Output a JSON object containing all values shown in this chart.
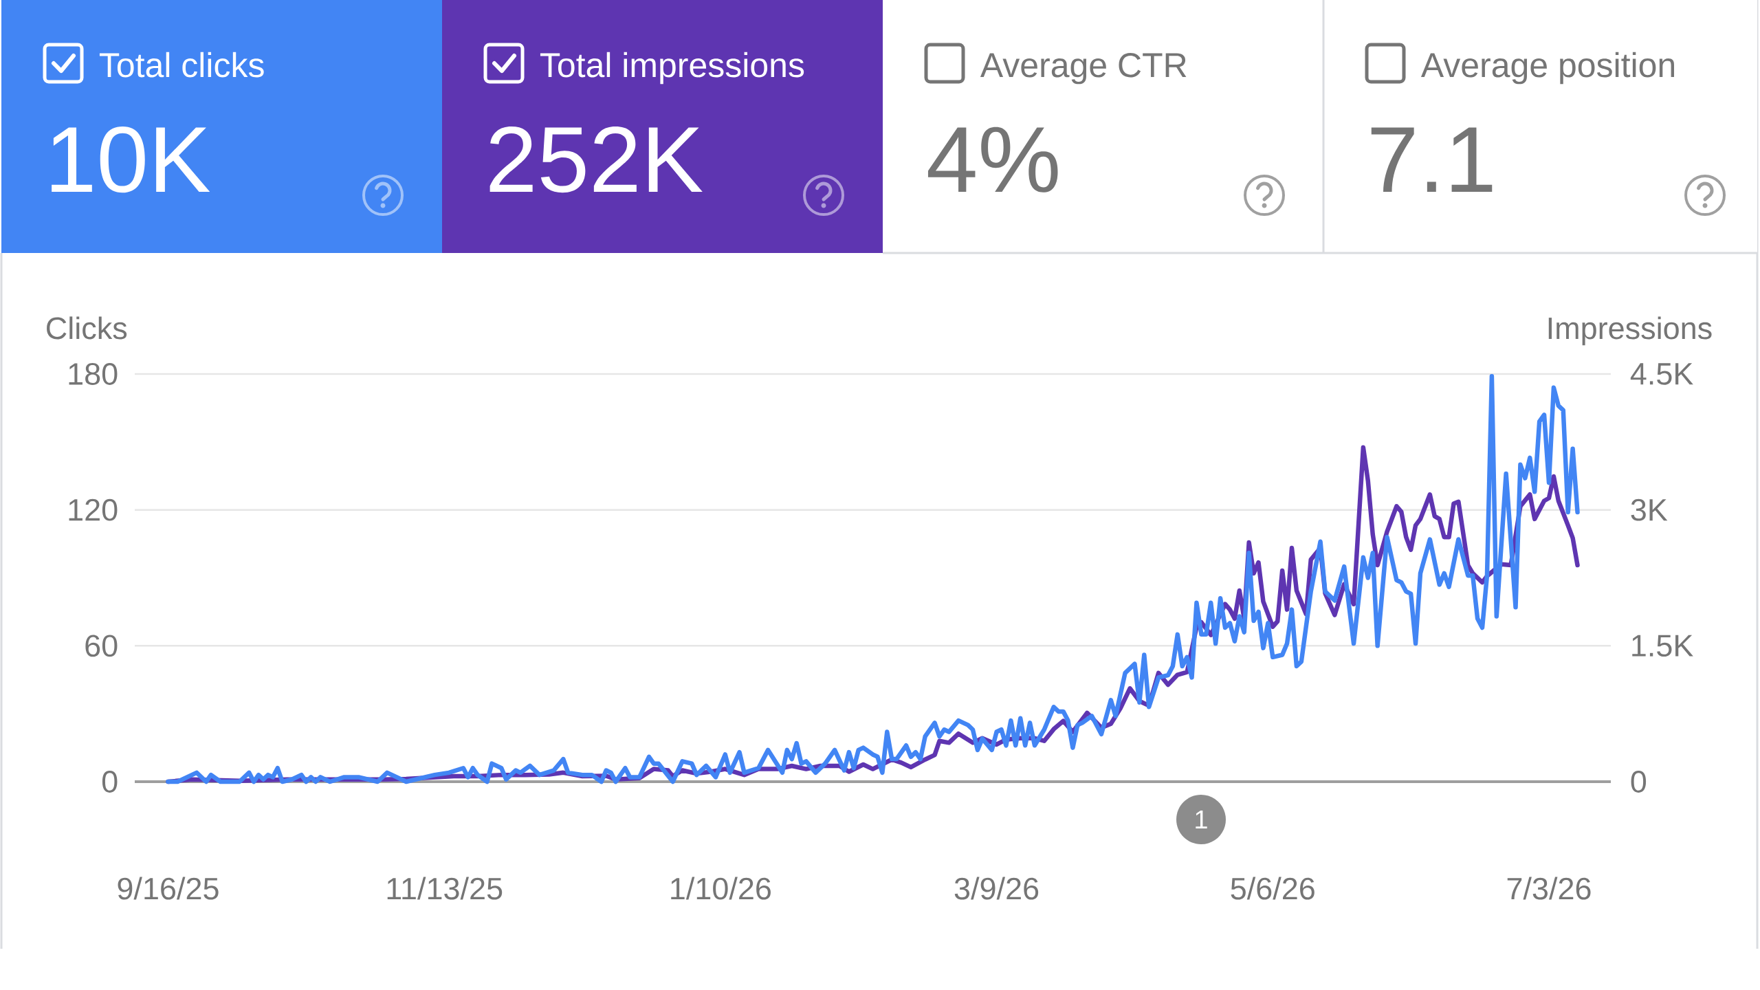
{
  "chart_data": [
    {
      "type": "other",
      "categories": [
        "Total clicks",
        "Total impressions",
        "Average CTR",
        "Average position"
      ],
      "value_labels": [
        "10K",
        "252K",
        "4%",
        "7.1"
      ],
      "colors": [
        "#4285f4",
        "#5e35b1",
        "#ffffff",
        "#ffffff"
      ]
    },
    {
      "type": "line",
      "ylabel": "Clicks",
      "y2label": "Impressions",
      "xlim": [
        "2025-09-09",
        "2026-07-16"
      ],
      "xticks": [
        {
          "value": "2025-09-16",
          "label": "9/16/25"
        },
        {
          "value": "2025-11-13",
          "label": "11/13/25"
        },
        {
          "value": "2026-01-10",
          "label": "1/10/26"
        },
        {
          "value": "2026-03-09",
          "label": "3/9/26"
        },
        {
          "value": "2026-05-06",
          "label": "5/6/26"
        },
        {
          "value": "2026-07-03",
          "label": "7/3/26"
        }
      ],
      "ylim": [
        0,
        180
      ],
      "yticks": [
        0,
        60,
        120,
        180
      ],
      "y2lim": [
        0,
        4500
      ],
      "y2ticks": [
        0,
        {
          "value": 1500,
          "label": "1.5K"
        },
        {
          "value": 3000,
          "label": "3K"
        },
        {
          "value": 4500,
          "label": "4.5K"
        }
      ],
      "grid": "y",
      "annotations": [
        "1"
      ],
      "series": [
        {
          "color": "#4285f4",
          "x": [
            "2025-09-16",
            "2025-09-18",
            "2025-09-22",
            "2025-09-24",
            "2025-09-25",
            "2025-09-27",
            "2025-10-01",
            "2025-10-03",
            "2025-10-04",
            "2025-10-05",
            "2025-10-06",
            "2025-10-07",
            "2025-10-08",
            "2025-10-09",
            "2025-10-10",
            "2025-10-12",
            "2025-10-14",
            "2025-10-15",
            "2025-10-16",
            "2025-10-17",
            "2025-10-18",
            "2025-10-20",
            "2025-10-23",
            "2025-10-26",
            "2025-10-28",
            "2025-10-30",
            "2025-11-01",
            "2025-11-03",
            "2025-11-05",
            "2025-11-07",
            "2025-11-09",
            "2025-11-11",
            "2025-11-14",
            "2025-11-17",
            "2025-11-18",
            "2025-11-19",
            "2025-11-20",
            "2025-11-22",
            "2025-11-23",
            "2025-11-25",
            "2025-11-26",
            "2025-11-28",
            "2025-11-29",
            "2025-12-01",
            "2025-12-03",
            "2025-12-06",
            "2025-12-08",
            "2025-12-09",
            "2025-12-12",
            "2025-12-14",
            "2025-12-16",
            "2025-12-17",
            "2025-12-18",
            "2025-12-19",
            "2025-12-21",
            "2025-12-22",
            "2025-12-24",
            "2025-12-26",
            "2025-12-27",
            "2025-12-28",
            "2025-12-31",
            "2026-01-02",
            "2026-01-04",
            "2026-01-05",
            "2026-01-07",
            "2026-01-09",
            "2026-01-11",
            "2026-01-12",
            "2026-01-14",
            "2026-01-15",
            "2026-01-18",
            "2026-01-20",
            "2026-01-23",
            "2026-01-24",
            "2026-01-25",
            "2026-01-26",
            "2026-01-27",
            "2026-01-28",
            "2026-01-30",
            "2026-02-01",
            "2026-02-03",
            "2026-02-05",
            "2026-02-06",
            "2026-02-07",
            "2026-02-08",
            "2026-02-09",
            "2026-02-11",
            "2026-02-12",
            "2026-02-13",
            "2026-02-14",
            "2026-02-15",
            "2026-02-16",
            "2026-02-18",
            "2026-02-19",
            "2026-02-20",
            "2026-02-21",
            "2026-02-22",
            "2026-02-24",
            "2026-02-25",
            "2026-02-26",
            "2026-02-27",
            "2026-03-01",
            "2026-03-03",
            "2026-03-04",
            "2026-03-05",
            "2026-03-06",
            "2026-03-08",
            "2026-03-09",
            "2026-03-10",
            "2026-03-11",
            "2026-03-12",
            "2026-03-13",
            "2026-03-14",
            "2026-03-15",
            "2026-03-16",
            "2026-03-17",
            "2026-03-19",
            "2026-03-21",
            "2026-03-22",
            "2026-03-23",
            "2026-03-24",
            "2026-03-25",
            "2026-03-26",
            "2026-03-27",
            "2026-03-29",
            "2026-03-31",
            "2026-04-02",
            "2026-04-03",
            "2026-04-05",
            "2026-04-07",
            "2026-04-08",
            "2026-04-09",
            "2026-04-10",
            "2026-04-12",
            "2026-04-14",
            "2026-04-15",
            "2026-04-16",
            "2026-04-17",
            "2026-04-18",
            "2026-04-19",
            "2026-04-20",
            "2026-04-21",
            "2026-04-22",
            "2026-04-23",
            "2026-04-24",
            "2026-04-25",
            "2026-04-26",
            "2026-04-27",
            "2026-04-28",
            "2026-04-29",
            "2026-04-30",
            "2026-05-01",
            "2026-05-02",
            "2026-05-03",
            "2026-05-04",
            "2026-05-05",
            "2026-05-06",
            "2026-05-08",
            "2026-05-09",
            "2026-05-10",
            "2026-05-11",
            "2026-05-12",
            "2026-05-14",
            "2026-05-16",
            "2026-05-17",
            "2026-05-19",
            "2026-05-21",
            "2026-05-23",
            "2026-05-25",
            "2026-05-26",
            "2026-05-27",
            "2026-05-28",
            "2026-05-30",
            "2026-06-01",
            "2026-06-02",
            "2026-06-03",
            "2026-06-04",
            "2026-06-05",
            "2026-06-06",
            "2026-06-08",
            "2026-06-10",
            "2026-06-11",
            "2026-06-12",
            "2026-06-14",
            "2026-06-16",
            "2026-06-17",
            "2026-06-18",
            "2026-06-19",
            "2026-06-20",
            "2026-06-21",
            "2026-06-22",
            "2026-06-24",
            "2026-06-26",
            "2026-06-27",
            "2026-06-28",
            "2026-06-29",
            "2026-06-30",
            "2026-07-01",
            "2026-07-02",
            "2026-07-03",
            "2026-07-04",
            "2026-07-05",
            "2026-07-06",
            "2026-07-07",
            "2026-07-08",
            "2026-07-09"
          ],
          "values": [
            0,
            0,
            4,
            0,
            3,
            0,
            0,
            4,
            0,
            3,
            1,
            3,
            2,
            6,
            0,
            1,
            3,
            0,
            2,
            0,
            2,
            0,
            2,
            2,
            1,
            0,
            4,
            2,
            0,
            1,
            2,
            3,
            4,
            6,
            2,
            6,
            3,
            0,
            8,
            6,
            1,
            5,
            4,
            7,
            3,
            5,
            10,
            4,
            3,
            3,
            0,
            5,
            4,
            0,
            6,
            2,
            2,
            11,
            8,
            8,
            0,
            9,
            8,
            3,
            7,
            2,
            12,
            4,
            13,
            4,
            6,
            14,
            4,
            14,
            10,
            17,
            8,
            9,
            4,
            8,
            14,
            5,
            13,
            6,
            14,
            15,
            12,
            11,
            4,
            22,
            10,
            10,
            16,
            11,
            13,
            10,
            20,
            26,
            20,
            23,
            22,
            27,
            25,
            23,
            14,
            19,
            14,
            22,
            23,
            16,
            27,
            16,
            28,
            16,
            26,
            16,
            23,
            33,
            31,
            31,
            27,
            15,
            25,
            26,
            29,
            21,
            36,
            29,
            48,
            52,
            35,
            56,
            33,
            46,
            47,
            51,
            65,
            51,
            55,
            46,
            79,
            65,
            65,
            79,
            61,
            81,
            68,
            70,
            62,
            73,
            66,
            101,
            71,
            75,
            59,
            70,
            55,
            56,
            61,
            76,
            51,
            53,
            84,
            106,
            84,
            80,
            95,
            61,
            99,
            90,
            101,
            60,
            108,
            89,
            88,
            84,
            83,
            61,
            92,
            107,
            87,
            92,
            86,
            107,
            91,
            91,
            72,
            68,
            91,
            179,
            73,
            136,
            77,
            140,
            134,
            143,
            128,
            159,
            162,
            132,
            174,
            166,
            164,
            119,
            147,
            119
          ]
        },
        {
          "color": "#5e35b1",
          "axis": "y2",
          "x": [
            "2025-09-16",
            "2025-09-21",
            "2025-10-01",
            "2025-10-11",
            "2025-10-21",
            "2025-10-31",
            "2025-11-05",
            "2025-11-10",
            "2025-11-15",
            "2025-11-20",
            "2025-11-25",
            "2025-11-30",
            "2025-12-05",
            "2025-12-08",
            "2025-12-12",
            "2025-12-17",
            "2025-12-19",
            "2025-12-24",
            "2025-12-27",
            "2025-12-30",
            "2025-12-31",
            "2026-01-02",
            "2026-01-05",
            "2026-01-08",
            "2026-01-11",
            "2026-01-15",
            "2026-01-18",
            "2026-01-22",
            "2026-01-25",
            "2026-01-28",
            "2026-01-31",
            "2026-02-04",
            "2026-02-06",
            "2026-02-09",
            "2026-02-11",
            "2026-02-15",
            "2026-02-17",
            "2026-02-19",
            "2026-02-22",
            "2026-02-24",
            "2026-02-25",
            "2026-02-27",
            "2026-03-01",
            "2026-03-04",
            "2026-03-06",
            "2026-03-09",
            "2026-03-11",
            "2026-03-14",
            "2026-03-17",
            "2026-03-19",
            "2026-03-21",
            "2026-03-23",
            "2026-03-25",
            "2026-03-28",
            "2026-03-31",
            "2026-04-02",
            "2026-04-04",
            "2026-04-06",
            "2026-04-08",
            "2026-04-10",
            "2026-04-12",
            "2026-04-14",
            "2026-04-16",
            "2026-04-18",
            "2026-04-20",
            "2026-04-21",
            "2026-04-23",
            "2026-04-26",
            "2026-04-27",
            "2026-04-28",
            "2026-04-29",
            "2026-04-30",
            "2026-05-01",
            "2026-05-02",
            "2026-05-03",
            "2026-05-04",
            "2026-05-06",
            "2026-05-07",
            "2026-05-08",
            "2026-05-09",
            "2026-05-10",
            "2026-05-11",
            "2026-05-13",
            "2026-05-14",
            "2026-05-16",
            "2026-05-17",
            "2026-05-19",
            "2026-05-21",
            "2026-05-23",
            "2026-05-25",
            "2026-05-26",
            "2026-05-27",
            "2026-05-28",
            "2026-05-30",
            "2026-06-01",
            "2026-06-02",
            "2026-06-03",
            "2026-06-04",
            "2026-06-05",
            "2026-06-06",
            "2026-06-08",
            "2026-06-09",
            "2026-06-10",
            "2026-06-11",
            "2026-06-12",
            "2026-06-13",
            "2026-06-14",
            "2026-06-16",
            "2026-06-17",
            "2026-06-19",
            "2026-06-20",
            "2026-06-23",
            "2026-06-25",
            "2026-06-27",
            "2026-06-29",
            "2026-06-30",
            "2026-07-02",
            "2026-07-03",
            "2026-07-04",
            "2026-07-05",
            "2026-07-07",
            "2026-07-08",
            "2026-07-09"
          ],
          "values": [
            0,
            25,
            10,
            25,
            25,
            25,
            30,
            45,
            60,
            60,
            75,
            75,
            80,
            100,
            60,
            65,
            25,
            40,
            140,
            125,
            60,
            125,
            90,
            110,
            140,
            75,
            140,
            140,
            175,
            140,
            175,
            175,
            110,
            190,
            140,
            245,
            210,
            160,
            245,
            295,
            450,
            430,
            530,
            430,
            480,
            410,
            465,
            480,
            480,
            450,
            580,
            670,
            550,
            760,
            595,
            640,
            810,
            1030,
            890,
            840,
            1200,
            1070,
            1180,
            1210,
            1710,
            1760,
            1620,
            1960,
            1900,
            1800,
            2110,
            1800,
            2640,
            2300,
            2420,
            1990,
            1710,
            1770,
            2330,
            1900,
            2580,
            2110,
            1850,
            2450,
            2580,
            2080,
            1840,
            2180,
            1960,
            3690,
            3320,
            2730,
            2390,
            2760,
            3040,
            2980,
            2700,
            2560,
            2830,
            2900,
            3170,
            2930,
            2900,
            2700,
            2700,
            3070,
            3090,
            2390,
            2300,
            2200,
            2270,
            2400,
            2390,
            3040,
            3170,
            2900,
            3100,
            3130,
            3370,
            3100,
            2830,
            2690,
            2390
          ]
        }
      ]
    }
  ]
}
